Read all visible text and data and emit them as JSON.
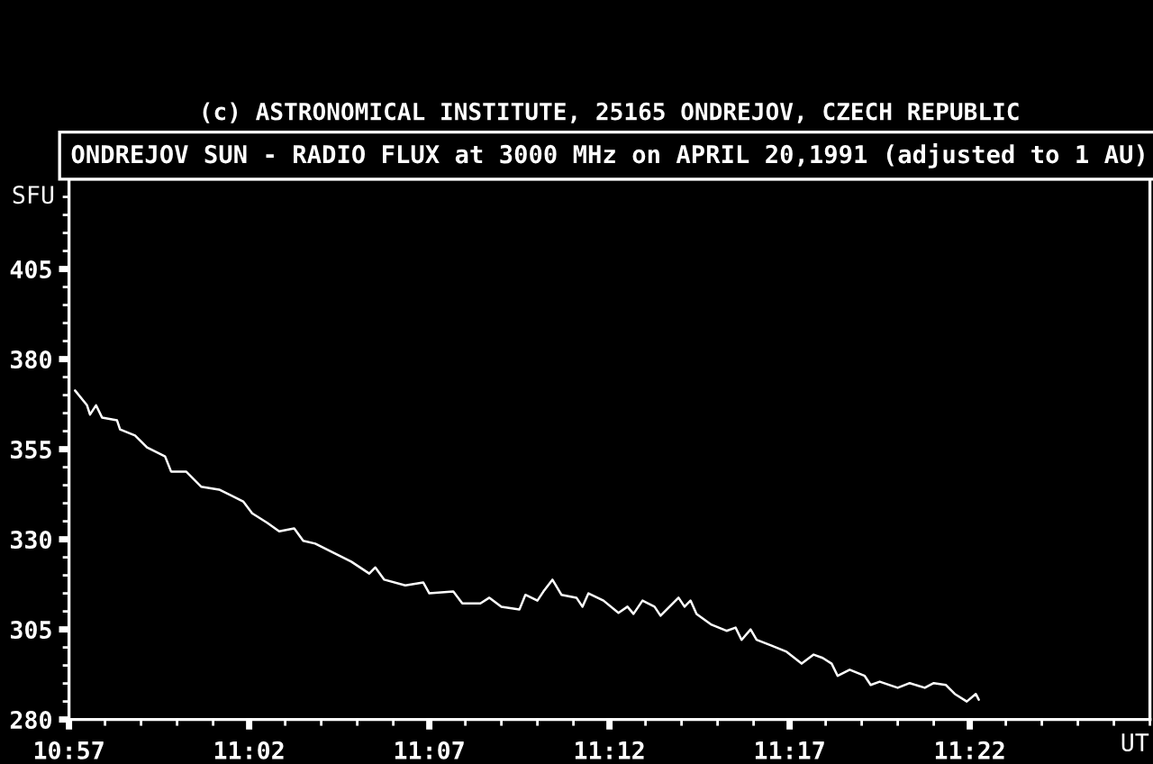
{
  "chart_data": {
    "type": "line",
    "title": "ONDREJOV SUN - RADIO FLUX at 3000 MHz on APRIL 20,1991 (adjusted to 1 AU)",
    "annotations": [
      "(c) ASTRONOMICAL INSTITUTE, 25165 ONDREJOV, CZECH REPUBLIC"
    ],
    "xlabel": "UT",
    "ylabel": "SFU",
    "color": "#ffffff",
    "x": [
      "1991-04-20T10:57:10",
      "1991-04-20T10:57:30",
      "1991-04-20T10:57:35",
      "1991-04-20T10:57:45",
      "1991-04-20T10:57:55",
      "1991-04-20T10:58:20",
      "1991-04-20T10:58:25",
      "1991-04-20T10:58:50",
      "1991-04-20T10:59:10",
      "1991-04-20T10:59:40",
      "1991-04-20T10:59:50",
      "1991-04-20T11:00:15",
      "1991-04-20T11:00:40",
      "1991-04-20T11:01:10",
      "1991-04-20T11:01:50",
      "1991-04-20T11:02:05",
      "1991-04-20T11:02:30",
      "1991-04-20T11:02:50",
      "1991-04-20T11:03:15",
      "1991-04-20T11:03:30",
      "1991-04-20T11:03:50",
      "1991-04-20T11:04:20",
      "1991-04-20T11:04:50",
      "1991-04-20T11:05:20",
      "1991-04-20T11:05:30",
      "1991-04-20T11:05:45",
      "1991-04-20T11:06:20",
      "1991-04-20T11:06:50",
      "1991-04-20T11:07:00",
      "1991-04-20T11:07:40",
      "1991-04-20T11:07:55",
      "1991-04-20T11:08:25",
      "1991-04-20T11:08:40",
      "1991-04-20T11:09:00",
      "1991-04-20T11:09:30",
      "1991-04-20T11:09:40",
      "1991-04-20T11:10:00",
      "1991-04-20T11:10:10",
      "1991-04-20T11:10:25",
      "1991-04-20T11:10:40",
      "1991-04-20T11:11:05",
      "1991-04-20T11:11:15",
      "1991-04-20T11:11:25",
      "1991-04-20T11:11:50",
      "1991-04-20T11:12:15",
      "1991-04-20T11:12:30",
      "1991-04-20T11:12:40",
      "1991-04-20T11:12:55",
      "1991-04-20T11:13:15",
      "1991-04-20T11:13:25",
      "1991-04-20T11:13:55",
      "1991-04-20T11:14:05",
      "1991-04-20T11:14:15",
      "1991-04-20T11:14:25",
      "1991-04-20T11:14:50",
      "1991-04-20T11:15:15",
      "1991-04-20T11:15:30",
      "1991-04-20T11:15:40",
      "1991-04-20T11:15:55",
      "1991-04-20T11:16:05",
      "1991-04-20T11:16:30",
      "1991-04-20T11:16:55",
      "1991-04-20T11:17:20",
      "1991-04-20T11:17:40",
      "1991-04-20T11:17:55",
      "1991-04-20T11:18:10",
      "1991-04-20T11:18:20",
      "1991-04-20T11:18:40",
      "1991-04-20T11:19:05",
      "1991-04-20T11:19:15",
      "1991-04-20T11:19:30",
      "1991-04-20T11:20:00",
      "1991-04-20T11:20:20",
      "1991-04-20T11:20:45",
      "1991-04-20T11:21:00",
      "1991-04-20T11:21:20",
      "1991-04-20T11:21:35",
      "1991-04-20T11:21:55",
      "1991-04-20T11:22:10",
      "1991-04-20T11:22:15"
    ],
    "values": [
      371.3,
      367.2,
      364.6,
      367.2,
      363.8,
      363.0,
      360.5,
      358.8,
      355.5,
      353.0,
      348.8,
      348.8,
      344.6,
      343.8,
      340.5,
      337.2,
      334.6,
      332.2,
      333.0,
      329.6,
      328.8,
      326.3,
      323.8,
      320.5,
      322.2,
      318.8,
      317.2,
      318.0,
      315.0,
      315.5,
      312.2,
      312.2,
      313.8,
      311.3,
      310.5,
      314.6,
      313.0,
      315.5,
      318.8,
      314.6,
      313.8,
      311.3,
      315.0,
      313.0,
      309.6,
      311.3,
      309.3,
      313.0,
      311.3,
      308.8,
      313.8,
      311.3,
      313.0,
      309.3,
      306.3,
      304.6,
      305.5,
      302.1,
      305.0,
      302.1,
      300.5,
      298.8,
      295.5,
      298.0,
      297.1,
      295.5,
      292.1,
      293.8,
      292.1,
      289.6,
      290.5,
      288.8,
      290.1,
      288.8,
      290.1,
      289.6,
      287.1,
      285.0,
      287.1,
      285.5
    ],
    "xlim": [
      "1991-04-20T10:57",
      "1991-04-20T11:27"
    ],
    "xticks": [
      {
        "value": "1991-04-20T10:57",
        "label": "10:57"
      },
      {
        "value": "1991-04-20T10:58",
        "label": null
      },
      {
        "value": "1991-04-20T10:59",
        "label": null
      },
      {
        "value": "1991-04-20T11:00",
        "label": null
      },
      {
        "value": "1991-04-20T11:01",
        "label": null
      },
      {
        "value": "1991-04-20T11:02",
        "label": "11:02"
      },
      {
        "value": "1991-04-20T11:03",
        "label": null
      },
      {
        "value": "1991-04-20T11:04",
        "label": null
      },
      {
        "value": "1991-04-20T11:05",
        "label": null
      },
      {
        "value": "1991-04-20T11:06",
        "label": null
      },
      {
        "value": "1991-04-20T11:07",
        "label": "11:07"
      },
      {
        "value": "1991-04-20T11:08",
        "label": null
      },
      {
        "value": "1991-04-20T11:09",
        "label": null
      },
      {
        "value": "1991-04-20T11:10",
        "label": null
      },
      {
        "value": "1991-04-20T11:11",
        "label": null
      },
      {
        "value": "1991-04-20T11:12",
        "label": "11:12"
      },
      {
        "value": "1991-04-20T11:13",
        "label": null
      },
      {
        "value": "1991-04-20T11:14",
        "label": null
      },
      {
        "value": "1991-04-20T11:15",
        "label": null
      },
      {
        "value": "1991-04-20T11:16",
        "label": null
      },
      {
        "value": "1991-04-20T11:17",
        "label": "11:17"
      },
      {
        "value": "1991-04-20T11:18",
        "label": null
      },
      {
        "value": "1991-04-20T11:19",
        "label": null
      },
      {
        "value": "1991-04-20T11:20",
        "label": null
      },
      {
        "value": "1991-04-20T11:21",
        "label": null
      },
      {
        "value": "1991-04-20T11:22",
        "label": "11:22"
      },
      {
        "value": "1991-04-20T11:23",
        "label": null
      },
      {
        "value": "1991-04-20T11:24",
        "label": null
      },
      {
        "value": "1991-04-20T11:25",
        "label": null
      },
      {
        "value": "1991-04-20T11:26",
        "label": null
      },
      {
        "value": "1991-04-20T11:27",
        "label": null
      }
    ],
    "ylim": [
      280,
      430
    ],
    "yticks": [
      280,
      {
        "value": 285,
        "label": null
      },
      {
        "value": 290,
        "label": null
      },
      {
        "value": 295,
        "label": null
      },
      {
        "value": 300,
        "label": null
      },
      305,
      {
        "value": 310,
        "label": null
      },
      {
        "value": 315,
        "label": null
      },
      {
        "value": 320,
        "label": null
      },
      {
        "value": 325,
        "label": null
      },
      330,
      {
        "value": 335,
        "label": null
      },
      {
        "value": 340,
        "label": null
      },
      {
        "value": 345,
        "label": null
      },
      {
        "value": 350,
        "label": null
      },
      355,
      {
        "value": 360,
        "label": null
      },
      {
        "value": 365,
        "label": null
      },
      {
        "value": 370,
        "label": null
      },
      {
        "value": 375,
        "label": null
      },
      380,
      {
        "value": 385,
        "label": null
      },
      {
        "value": 390,
        "label": null
      },
      {
        "value": 395,
        "label": null
      },
      {
        "value": 400,
        "label": null
      },
      405,
      {
        "value": 410,
        "label": null
      },
      {
        "value": 415,
        "label": null
      },
      {
        "value": 420,
        "label": null
      },
      {
        "value": 425,
        "label": null
      }
    ]
  }
}
